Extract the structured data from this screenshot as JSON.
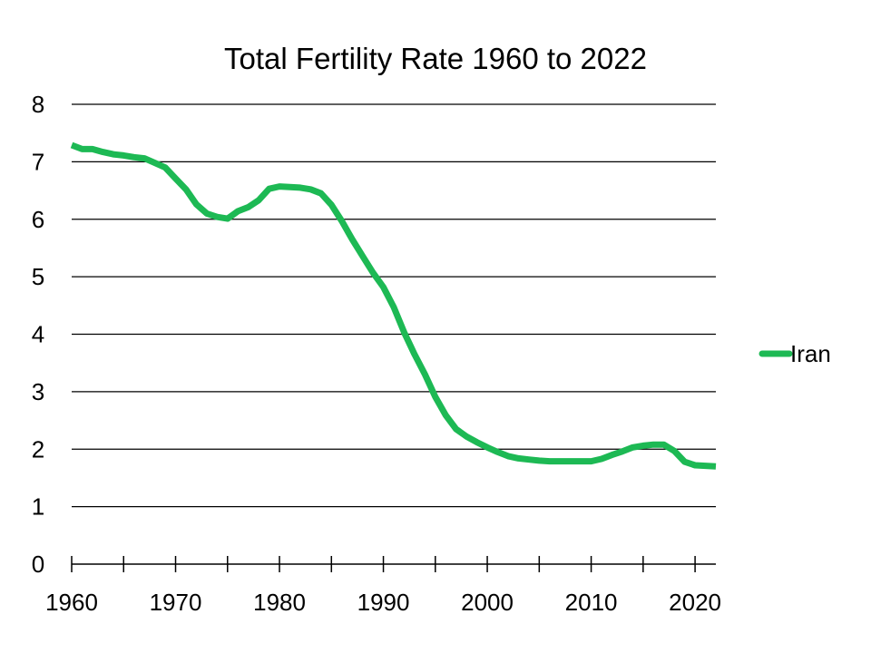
{
  "chart_data": {
    "type": "line",
    "title": "Total Fertility Rate 1960 to 2022",
    "xlabel": "",
    "ylabel": "",
    "xlim": [
      1960,
      2022
    ],
    "ylim": [
      0,
      8
    ],
    "x_ticks": [
      1960,
      1970,
      1980,
      1990,
      2000,
      2010,
      2020
    ],
    "y_ticks": [
      0,
      1,
      2,
      3,
      4,
      5,
      6,
      7,
      8
    ],
    "grid": "horizontal",
    "legend_position": "right",
    "colors": {
      "series": "#1db954",
      "grid": "#000000",
      "axis": "#000000"
    },
    "x": [
      1960,
      1961,
      1962,
      1963,
      1964,
      1965,
      1966,
      1967,
      1968,
      1969,
      1970,
      1971,
      1972,
      1973,
      1974,
      1975,
      1976,
      1977,
      1978,
      1979,
      1980,
      1981,
      1982,
      1983,
      1984,
      1985,
      1986,
      1987,
      1988,
      1989,
      1990,
      1991,
      1992,
      1993,
      1994,
      1995,
      1996,
      1997,
      1998,
      1999,
      2000,
      2001,
      2002,
      2003,
      2004,
      2005,
      2006,
      2007,
      2008,
      2009,
      2010,
      2011,
      2012,
      2013,
      2014,
      2015,
      2016,
      2017,
      2018,
      2019,
      2020,
      2021,
      2022
    ],
    "series": [
      {
        "name": "Iran",
        "values": [
          7.29,
          7.22,
          7.22,
          7.17,
          7.13,
          7.11,
          7.08,
          7.06,
          6.98,
          6.9,
          6.71,
          6.52,
          6.26,
          6.1,
          6.04,
          6.01,
          6.14,
          6.21,
          6.33,
          6.53,
          6.57,
          6.56,
          6.55,
          6.52,
          6.45,
          6.25,
          5.97,
          5.65,
          5.36,
          5.07,
          4.82,
          4.47,
          4.03,
          3.65,
          3.3,
          2.91,
          2.59,
          2.35,
          2.22,
          2.12,
          2.03,
          1.95,
          1.88,
          1.84,
          1.82,
          1.8,
          1.79,
          1.79,
          1.79,
          1.79,
          1.79,
          1.83,
          1.9,
          1.96,
          2.03,
          2.06,
          2.08,
          2.08,
          1.97,
          1.78,
          1.72,
          1.71,
          1.7
        ]
      }
    ]
  }
}
